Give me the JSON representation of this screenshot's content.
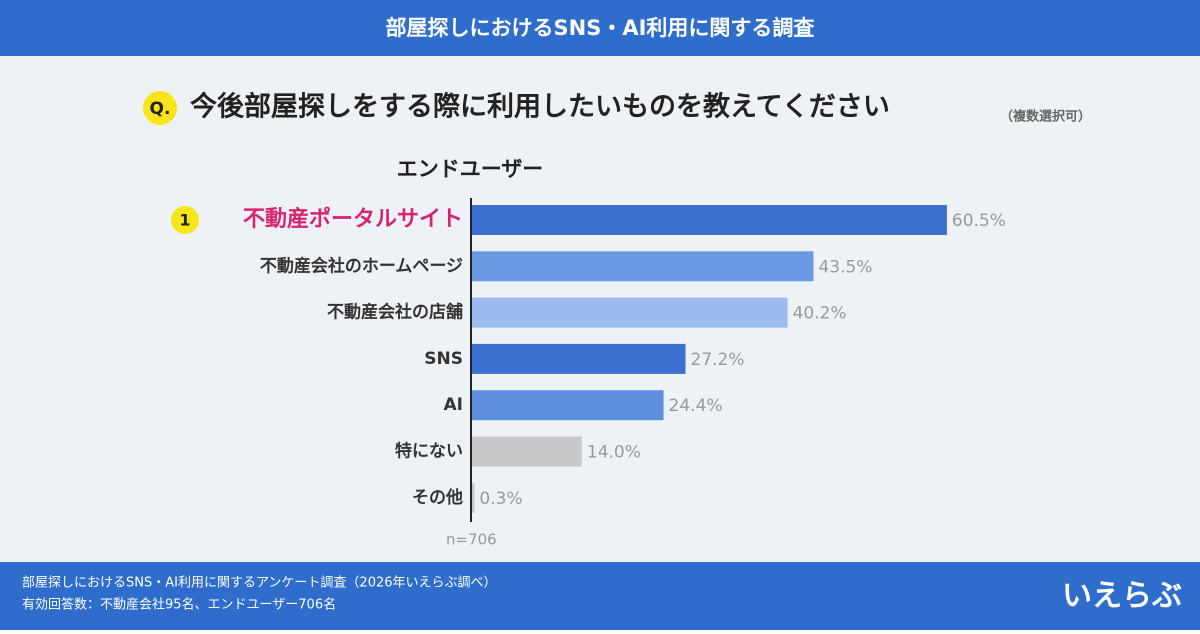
{
  "chart_data": {
    "type": "bar",
    "orientation": "horizontal",
    "title": "部屋探しにおけるSNS・AI利用に関する調査",
    "question_marker": "Q.",
    "question": "今後部屋探しをする際に利用したいものを教えてください",
    "question_note": "（複数選択可）",
    "subtitle": "エンドユーザー",
    "rank_badge": "1",
    "categories": [
      "不動産ポータルサイト",
      "不動産会社のホームページ",
      "不動産会社の店舗",
      "SNS",
      "AI",
      "特にない",
      "その他"
    ],
    "values": [
      60.5,
      43.5,
      40.2,
      27.2,
      24.4,
      14.0,
      0.3
    ],
    "value_labels": [
      "60.5%",
      "43.5%",
      "40.2%",
      "27.2%",
      "24.4%",
      "14.0%",
      "0.3%"
    ],
    "colors": [
      "#3b70d0",
      "#6b9ae3",
      "#9cbcef",
      "#3b70d0",
      "#5e8fdf",
      "#c9c9c9",
      "#c9c9c9"
    ],
    "sample_size": "n=706",
    "footer": [
      "部屋探しにおけるSNS・AI利用に関するアンケート調査（2026年いえらぶ調べ）",
      "有効回答数：不動産会社95名、エンドユーザー706名"
    ],
    "logo": "いえらぶ"
  }
}
